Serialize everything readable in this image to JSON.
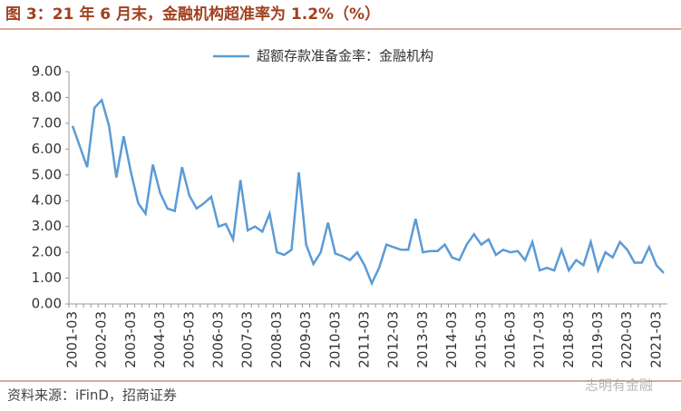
{
  "chart_data": {
    "type": "line",
    "title": "图 3：21 年 6 月末，金融机构超准率为 1.2%（%）",
    "source": "资料来源：iFinD，招商证券",
    "watermark": "志明有金融",
    "categories": [
      "2001-03",
      null,
      null,
      null,
      "2002-03",
      null,
      null,
      null,
      "2003-03",
      null,
      null,
      null,
      "2004-03",
      null,
      null,
      null,
      "2005-03",
      null,
      null,
      null,
      "2006-03",
      null,
      null,
      null,
      "2007-03",
      null,
      null,
      null,
      "2008-03",
      null,
      null,
      null,
      "2009-03",
      null,
      null,
      null,
      "2010-03",
      null,
      null,
      null,
      "2011-03",
      null,
      null,
      null,
      "2012-03",
      null,
      null,
      null,
      "2013-03",
      null,
      null,
      null,
      "2014-03",
      null,
      null,
      null,
      "2015-03",
      null,
      null,
      null,
      "2016-03",
      null,
      null,
      null,
      "2017-03",
      null,
      null,
      null,
      "2018-03",
      null,
      null,
      null,
      "2019-03",
      null,
      null,
      null,
      "2020-03",
      null,
      null,
      null,
      "2021-03",
      null
    ],
    "series": [
      {
        "name": "超额存款准备金率：金融机构",
        "color": "#5b9bd5",
        "values": [
          6.9,
          6.1,
          5.3,
          7.6,
          7.9,
          6.9,
          4.9,
          6.5,
          5.1,
          3.9,
          3.5,
          5.4,
          4.3,
          3.7,
          3.6,
          5.3,
          4.2,
          3.7,
          3.9,
          4.15,
          3.0,
          3.1,
          2.5,
          4.8,
          2.85,
          3.0,
          2.8,
          3.5,
          2.0,
          1.9,
          2.1,
          5.1,
          2.3,
          1.55,
          2.0,
          3.15,
          1.95,
          1.85,
          1.7,
          2.0,
          1.5,
          0.8,
          1.4,
          2.3,
          2.2,
          2.1,
          2.1,
          3.3,
          2.0,
          2.05,
          2.05,
          2.3,
          1.8,
          1.7,
          2.3,
          2.7,
          2.3,
          2.5,
          1.9,
          2.1,
          2.0,
          2.05,
          1.7,
          2.4,
          1.3,
          1.4,
          1.3,
          2.1,
          1.3,
          1.7,
          1.5,
          2.4,
          1.3,
          2.0,
          1.8,
          2.4,
          2.1,
          1.6,
          1.6,
          2.2,
          1.5,
          1.2
        ]
      }
    ],
    "ylim": [
      0,
      9
    ],
    "yticks": [
      {
        "value": 0,
        "label": "0.00"
      },
      {
        "value": 1,
        "label": "1.00"
      },
      {
        "value": 2,
        "label": "2.00"
      },
      {
        "value": 3,
        "label": "3.00"
      },
      {
        "value": 4,
        "label": "4.00"
      },
      {
        "value": 5,
        "label": "5.00"
      },
      {
        "value": 6,
        "label": "6.00"
      },
      {
        "value": 7,
        "label": "7.00"
      },
      {
        "value": 8,
        "label": "8.00"
      },
      {
        "value": 9,
        "label": "9.00"
      }
    ],
    "grid": false,
    "legend": "top"
  }
}
